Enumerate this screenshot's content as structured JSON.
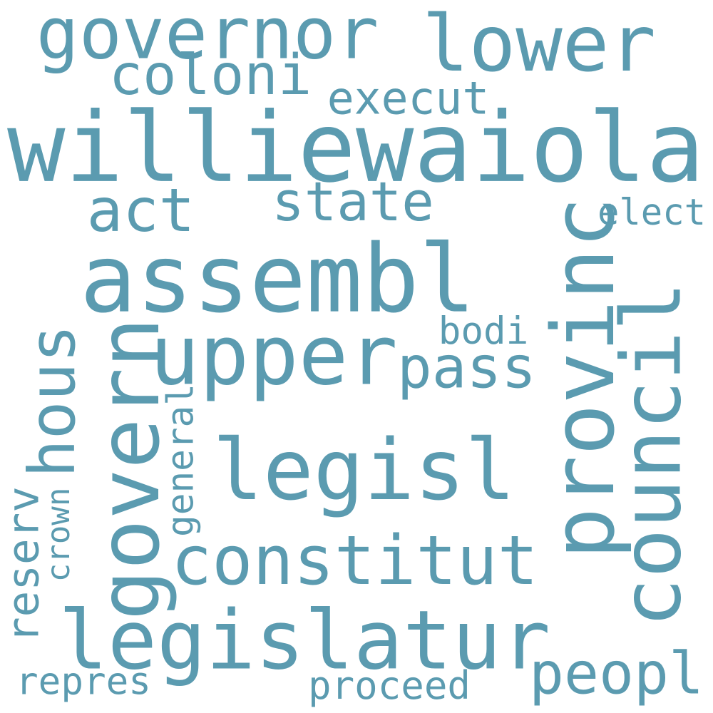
{
  "wordcloud": {
    "color": "#5b9bb0",
    "words": {
      "williewaiola": "williewaiola",
      "assembl": "assembl",
      "legisl": "legisl",
      "legislatur": "legislatur",
      "upper": "upper",
      "provinc": "provinc",
      "govern": "govern",
      "council": "council",
      "governor": "governor",
      "lower": "lower",
      "hous": "hous",
      "constitut": "constitut",
      "coloni": "coloni",
      "act": "act",
      "state": "state",
      "pass": "pass",
      "peopl": "peopl",
      "execut": "execut",
      "elect": "elect",
      "bodi": "bodi",
      "general": "general",
      "reserv": "reserv",
      "crown": "crown",
      "repres": "repres",
      "proceed": "proceed"
    }
  }
}
